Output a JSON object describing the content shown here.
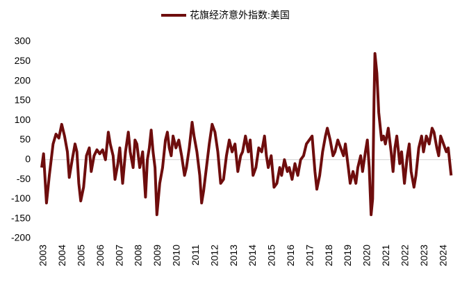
{
  "chart_data": {
    "type": "line",
    "x": [
      2003.0,
      2003.1,
      2003.25,
      2003.4,
      2003.6,
      2003.75,
      2003.9,
      2004.05,
      2004.2,
      2004.35,
      2004.45,
      2004.6,
      2004.75,
      2004.85,
      2004.95,
      2005.05,
      2005.2,
      2005.35,
      2005.5,
      2005.6,
      2005.75,
      2005.9,
      2006.05,
      2006.2,
      2006.35,
      2006.5,
      2006.6,
      2006.75,
      2006.85,
      2007.0,
      2007.1,
      2007.25,
      2007.4,
      2007.55,
      2007.65,
      2007.8,
      2007.9,
      2008.0,
      2008.15,
      2008.3,
      2008.45,
      2008.55,
      2008.65,
      2008.75,
      2008.85,
      2008.95,
      2009.05,
      2009.2,
      2009.35,
      2009.5,
      2009.6,
      2009.7,
      2009.8,
      2009.9,
      2010.05,
      2010.2,
      2010.35,
      2010.5,
      2010.6,
      2010.75,
      2010.9,
      2011.0,
      2011.15,
      2011.3,
      2011.4,
      2011.5,
      2011.65,
      2011.8,
      2011.95,
      2012.1,
      2012.25,
      2012.4,
      2012.55,
      2012.7,
      2012.85,
      2013.0,
      2013.15,
      2013.3,
      2013.45,
      2013.55,
      2013.7,
      2013.85,
      2013.95,
      2014.1,
      2014.25,
      2014.4,
      2014.55,
      2014.7,
      2014.8,
      2014.9,
      2015.05,
      2015.2,
      2015.35,
      2015.5,
      2015.6,
      2015.75,
      2015.9,
      2016.0,
      2016.15,
      2016.3,
      2016.45,
      2016.6,
      2016.75,
      2016.9,
      2017.05,
      2017.2,
      2017.35,
      2017.45,
      2017.6,
      2017.75,
      2017.9,
      2018.0,
      2018.15,
      2018.3,
      2018.4,
      2018.55,
      2018.7,
      2018.85,
      2018.95,
      2019.1,
      2019.2,
      2019.35,
      2019.5,
      2019.6,
      2019.75,
      2019.85,
      2020.0,
      2020.1,
      2020.2,
      2020.3,
      2020.38,
      2020.45,
      2020.5,
      2020.6,
      2020.7,
      2020.85,
      2020.95,
      2021.05,
      2021.2,
      2021.35,
      2021.45,
      2021.55,
      2021.65,
      2021.8,
      2021.9,
      2022.05,
      2022.2,
      2022.3,
      2022.4,
      2022.55,
      2022.65,
      2022.8,
      2022.95,
      2023.05,
      2023.2,
      2023.35,
      2023.5,
      2023.6,
      2023.75,
      2023.85,
      2023.95,
      2024.1,
      2024.25,
      2024.35,
      2024.5
    ],
    "series": [
      {
        "name": "花旗经济意外指数:美国",
        "color": "#6e0d0d",
        "values": [
          -20,
          15,
          -110,
          -40,
          40,
          65,
          55,
          90,
          60,
          20,
          -45,
          0,
          40,
          20,
          -60,
          -105,
          -70,
          10,
          30,
          -30,
          10,
          25,
          15,
          25,
          0,
          70,
          40,
          10,
          -50,
          -10,
          30,
          -60,
          20,
          70,
          20,
          -20,
          50,
          40,
          -20,
          20,
          -95,
          0,
          30,
          75,
          20,
          -20,
          -140,
          -60,
          -20,
          50,
          70,
          30,
          10,
          60,
          30,
          50,
          10,
          -40,
          -20,
          30,
          95,
          60,
          20,
          -40,
          -110,
          -80,
          -20,
          40,
          90,
          70,
          20,
          -60,
          -50,
          10,
          50,
          20,
          40,
          -30,
          10,
          20,
          60,
          20,
          50,
          -40,
          -20,
          30,
          20,
          60,
          10,
          -20,
          10,
          -70,
          -60,
          -20,
          -40,
          0,
          -30,
          -20,
          -50,
          -10,
          -40,
          0,
          10,
          40,
          50,
          60,
          -30,
          -75,
          -40,
          20,
          60,
          80,
          50,
          10,
          20,
          50,
          30,
          10,
          40,
          -20,
          -60,
          -30,
          -60,
          -20,
          10,
          -30,
          20,
          50,
          -20,
          -140,
          -100,
          150,
          270,
          220,
          120,
          50,
          60,
          40,
          80,
          20,
          -30,
          30,
          60,
          -10,
          20,
          -60,
          10,
          40,
          -30,
          -70,
          -40,
          30,
          60,
          20,
          60,
          40,
          80,
          70,
          30,
          10,
          60,
          40,
          20,
          30,
          -40
        ]
      }
    ],
    "xlim": [
      2003,
      2024.6
    ],
    "xticks": [
      2003,
      2004,
      2005,
      2006,
      2007,
      2008,
      2009,
      2010,
      2011,
      2012,
      2013,
      2014,
      2015,
      2016,
      2017,
      2018,
      2019,
      2020,
      2021,
      2022,
      2023,
      2024
    ],
    "ylim": [
      -200,
      300
    ],
    "yticks": [
      300,
      250,
      200,
      150,
      100,
      50,
      0,
      -50,
      -100,
      -150,
      -200
    ]
  }
}
